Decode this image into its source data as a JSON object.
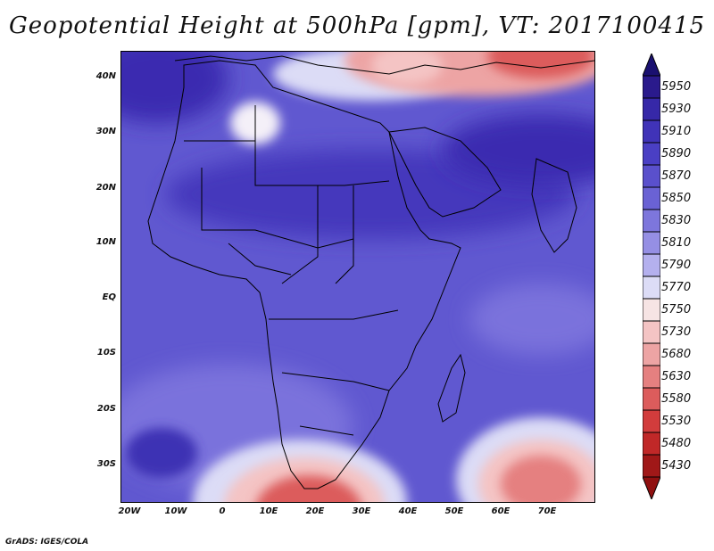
{
  "title": "Geopotential Height at 500hPa [gpm], VT: 2017100415",
  "credit": "GrADS: IGES/COLA",
  "map": {
    "lat_labels": [
      "40N",
      "30N",
      "20N",
      "10N",
      "EQ",
      "10S",
      "20S",
      "30S"
    ],
    "lon_labels": [
      "20W",
      "10W",
      "0",
      "10E",
      "20E",
      "30E",
      "40E",
      "50E",
      "60E",
      "70E"
    ]
  },
  "colorbar": {
    "levels": [
      "5950",
      "5930",
      "5910",
      "5890",
      "5870",
      "5850",
      "5830",
      "5810",
      "5790",
      "5770",
      "5750",
      "5730",
      "5680",
      "5630",
      "5580",
      "5530",
      "5480",
      "5430"
    ],
    "colors": [
      "#2a1a8c",
      "#3628a8",
      "#4033b8",
      "#4a3fc4",
      "#5a50cc",
      "#6a62d4",
      "#7d76dc",
      "#958fe4",
      "#b4b0ee",
      "#dcdcf6",
      "#f6e4e4",
      "#f4c4c4",
      "#eda4a4",
      "#e58080",
      "#dc5c5c",
      "#d23c3c",
      "#c02828",
      "#a01818"
    ]
  }
}
